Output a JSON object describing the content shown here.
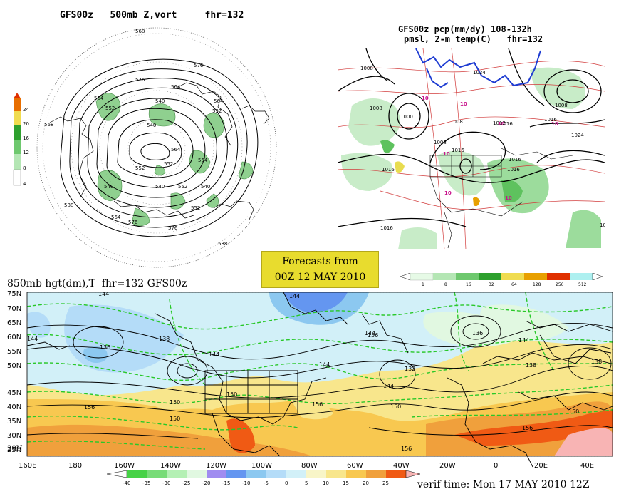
{
  "panel_tl": {
    "title": "GFS00z   500mb Z,vort     fhr=132",
    "contours": [
      "568",
      "576",
      "564",
      "552",
      "540",
      "528",
      "584",
      "576",
      "564",
      "540",
      "552",
      "588",
      "540",
      "564",
      "552",
      "576",
      "540",
      "564",
      "588",
      "576",
      "552",
      "540",
      "552",
      "564",
      "588"
    ],
    "colorbar": [
      "24",
      "20",
      "16",
      "12",
      "8",
      "4"
    ],
    "colors": [
      "#b4e6b4",
      "#6ec86e",
      "#2ea02e",
      "#f0dc50",
      "#e86e00",
      "#e03000"
    ]
  },
  "panel_tr": {
    "title1": "GFS00z pcp(mm/dy) 108-132h",
    "title2": "pmsl, 2-m temp(C)   fhr=132",
    "isobars": [
      "1008",
      "1024",
      "1008",
      "1000",
      "1016",
      "1024",
      "1008",
      "1016",
      "1024",
      "1016",
      "1016",
      "1024",
      "1012",
      "1016",
      "1016",
      "1008",
      "1016"
    ],
    "temps": [
      "10",
      "10",
      "10",
      "10",
      "10",
      "10",
      "10"
    ],
    "colorbar": [
      "1",
      "8",
      "16",
      "32",
      "64",
      "128",
      "256",
      "512"
    ],
    "colors": [
      "#e6fae6",
      "#b4e6b4",
      "#6ec86e",
      "#2ea02e",
      "#f0dc50",
      "#e8a000",
      "#e03000",
      "#aef0f0"
    ]
  },
  "forecast_box": {
    "line1": "Forecasts from",
    "line2": "00Z 12 MAY 2010"
  },
  "panel_bottom": {
    "title": "850mb hgt(dm),T  fhr=132 GFS00z",
    "lat_labels": [
      "75N",
      "70N",
      "65N",
      "60N",
      "55N",
      "50N",
      "45N",
      "40N",
      "35N",
      "30N",
      "25N",
      "20N"
    ],
    "lon_labels": [
      "160E",
      "180",
      "160W",
      "140W",
      "120W",
      "100W",
      "80W",
      "60W",
      "40W",
      "20W",
      "0",
      "20E",
      "40E"
    ],
    "contours": [
      "144",
      "144",
      "144",
      "138",
      "144",
      "136",
      "144",
      "144",
      "150",
      "156",
      "150",
      "150",
      "156",
      "136",
      "138",
      "132",
      "144",
      "150",
      "156",
      "144",
      "138",
      "150",
      "156"
    ],
    "colorbar": [
      "-40",
      "-35",
      "-30",
      "-25",
      "-20",
      "-15",
      "-10",
      "-5",
      "0",
      "5",
      "10",
      "15",
      "20",
      "25"
    ],
    "colors": [
      "#46d246",
      "#78dc78",
      "#b4f0b4",
      "#e1f8e1",
      "#a08cf0",
      "#6496f0",
      "#8cc8f0",
      "#b4dcf8",
      "#d2f0f8",
      "#f8f5c8",
      "#f8e68c",
      "#f8c850",
      "#f0a03c",
      "#f05a14",
      "#f8b4b4"
    ]
  },
  "verif": "verif time: Mon 17 MAY 2010 12Z"
}
